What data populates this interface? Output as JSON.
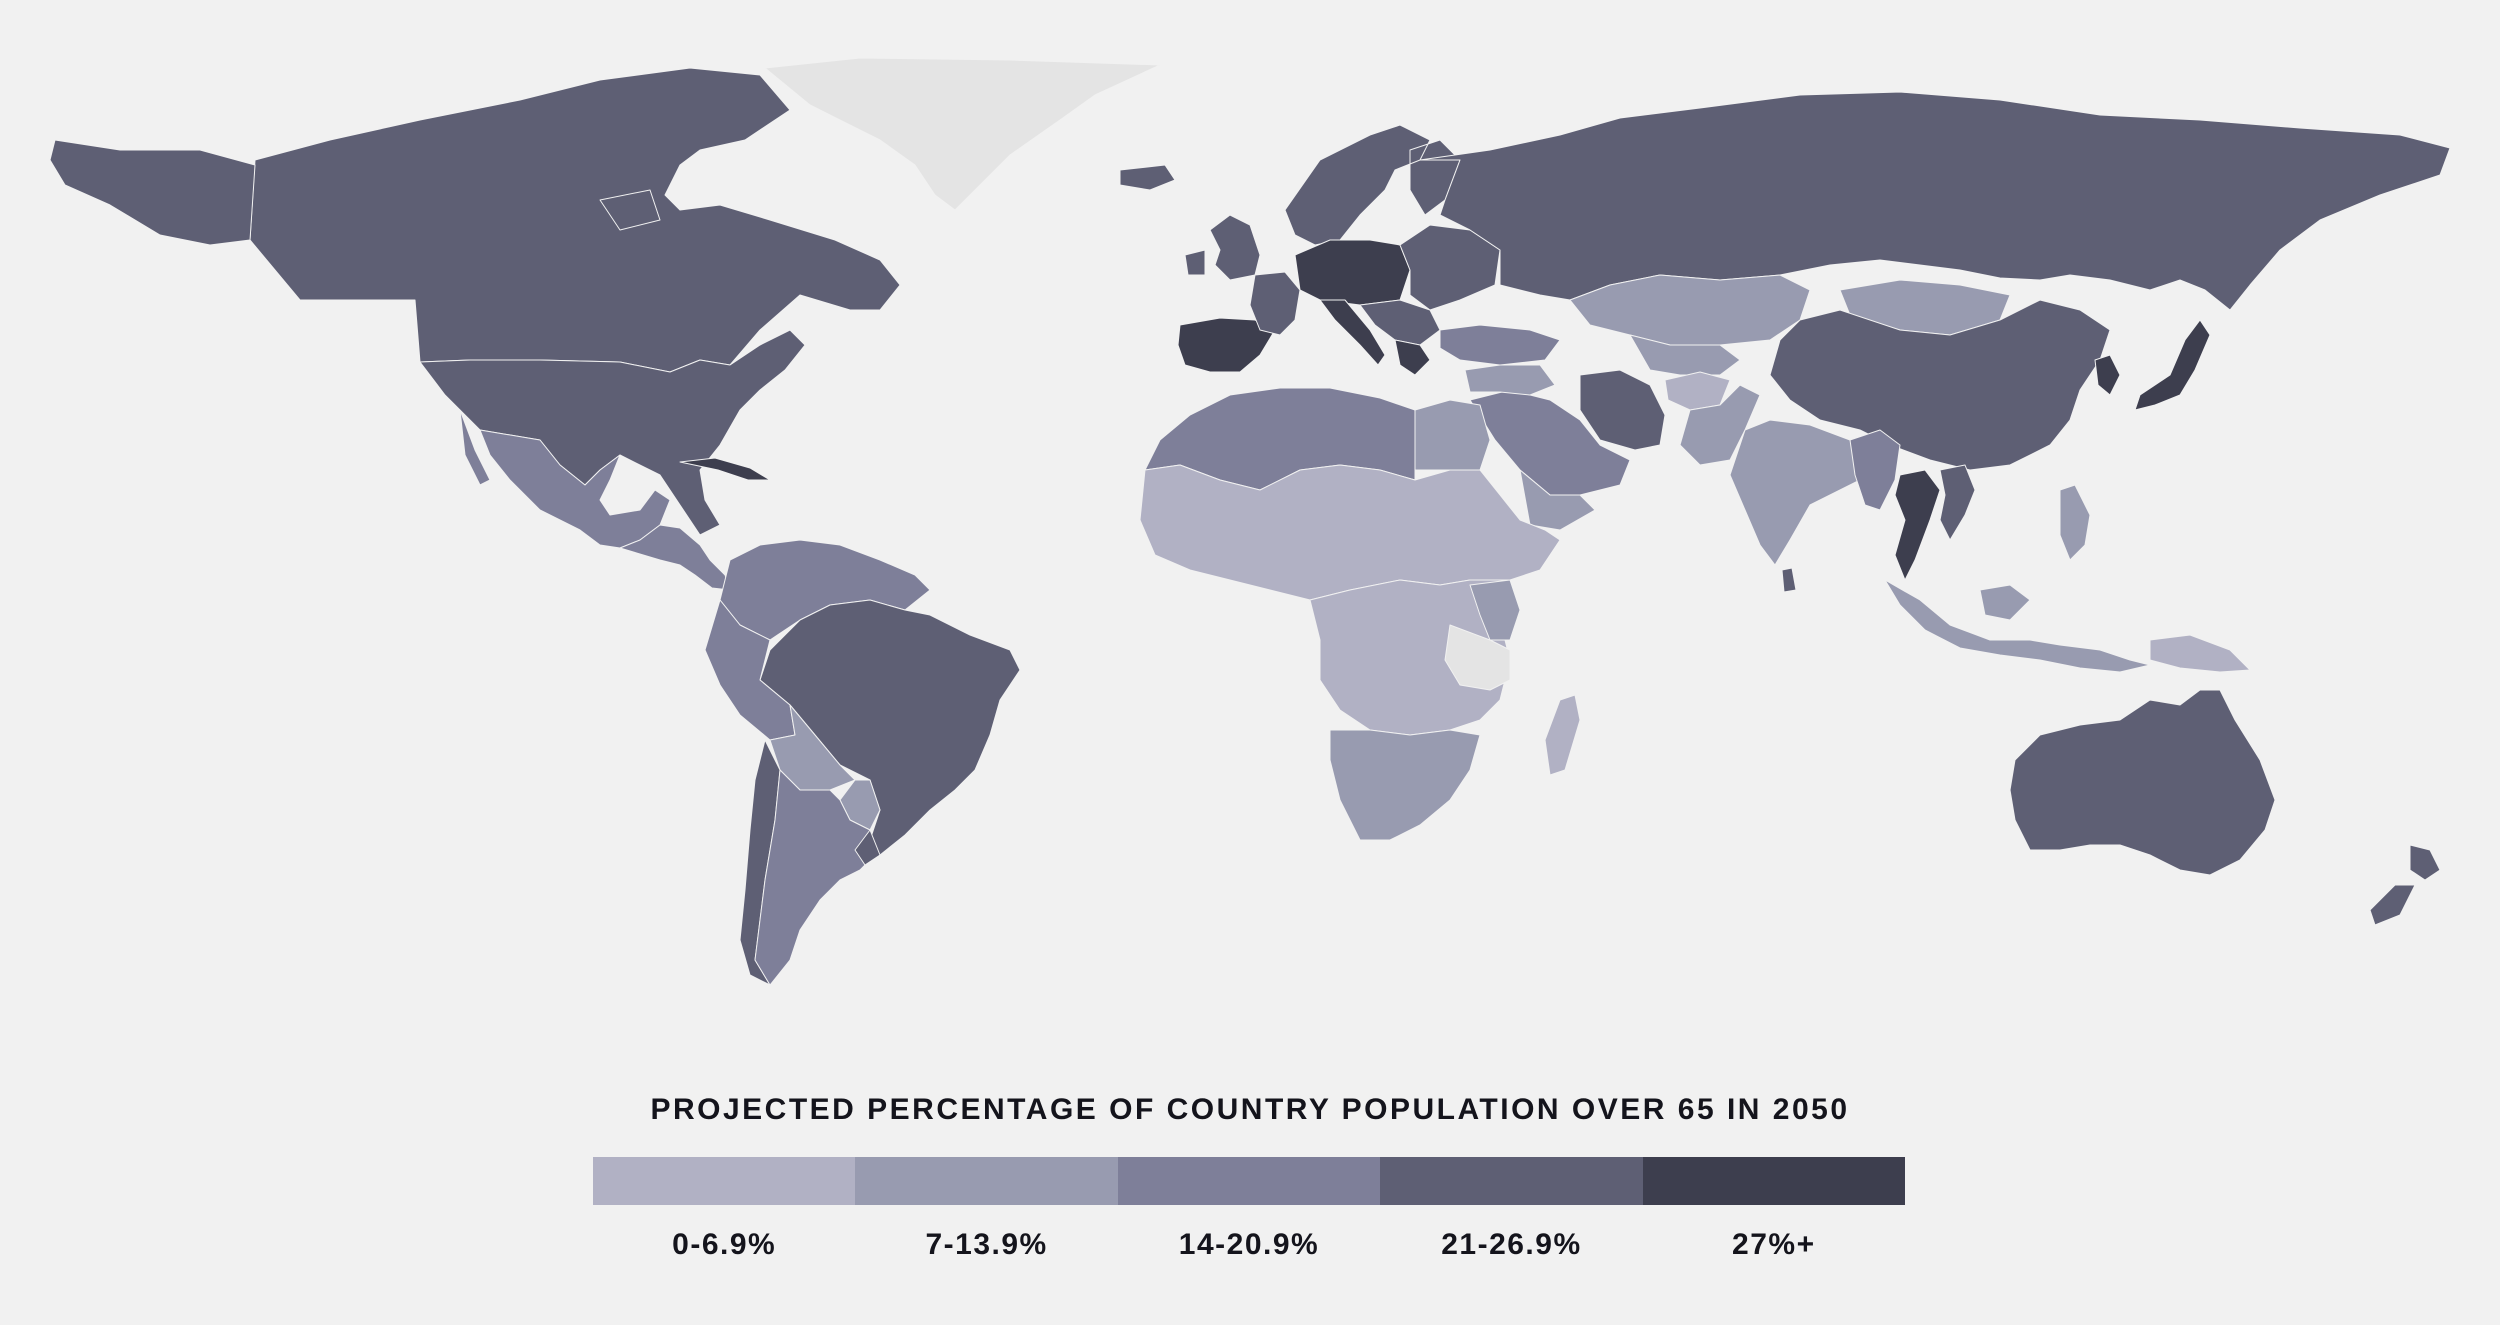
{
  "legend": {
    "title": "PROJECTED PERCENTAGE OF COUNTRY POPULATION OVER 65 IN 2050",
    "bins": [
      {
        "label": "0-6.9%",
        "color": "#b1b1c4"
      },
      {
        "label": "7-13.9%",
        "color": "#989bb0"
      },
      {
        "label": "14-20.9%",
        "color": "#7e7f99"
      },
      {
        "label": "21-26.9%",
        "color": "#5e5f74"
      },
      {
        "label": "27%+",
        "color": "#3d3e4e"
      }
    ]
  },
  "no_data_color": "#e4e4e4",
  "regions": [
    {
      "name": "Greenland",
      "bin": -1
    },
    {
      "name": "Canada",
      "bin": 3
    },
    {
      "name": "Alaska",
      "bin": 3
    },
    {
      "name": "United States",
      "bin": 3
    },
    {
      "name": "Mexico",
      "bin": 2
    },
    {
      "name": "Central America",
      "bin": 2
    },
    {
      "name": "Cuba",
      "bin": 4
    },
    {
      "name": "Northern South America",
      "bin": 2
    },
    {
      "name": "Brazil",
      "bin": 3
    },
    {
      "name": "Peru",
      "bin": 2
    },
    {
      "name": "Bolivia",
      "bin": 1
    },
    {
      "name": "Paraguay",
      "bin": 1
    },
    {
      "name": "Chile",
      "bin": 3
    },
    {
      "name": "Argentina",
      "bin": 2
    },
    {
      "name": "Uruguay",
      "bin": 3
    },
    {
      "name": "Iceland",
      "bin": 3
    },
    {
      "name": "United Kingdom",
      "bin": 3
    },
    {
      "name": "Scandinavia",
      "bin": 3
    },
    {
      "name": "Spain and Portugal",
      "bin": 4
    },
    {
      "name": "France",
      "bin": 3
    },
    {
      "name": "Central Europe",
      "bin": 4
    },
    {
      "name": "Italy",
      "bin": 4
    },
    {
      "name": "Balkans",
      "bin": 3
    },
    {
      "name": "Greece",
      "bin": 4
    },
    {
      "name": "Eastern Europe",
      "bin": 3
    },
    {
      "name": "Russia",
      "bin": 3
    },
    {
      "name": "Turkey",
      "bin": 2
    },
    {
      "name": "Kazakhstan",
      "bin": 1
    },
    {
      "name": "Mongolia",
      "bin": 1
    },
    {
      "name": "China",
      "bin": 3
    },
    {
      "name": "Korea",
      "bin": 4
    },
    {
      "name": "Japan",
      "bin": 4
    },
    {
      "name": "Iran",
      "bin": 3
    },
    {
      "name": "Central Asia",
      "bin": 1
    },
    {
      "name": "Afghanistan",
      "bin": 0
    },
    {
      "name": "Pakistan",
      "bin": 1
    },
    {
      "name": "India",
      "bin": 1
    },
    {
      "name": "Sri Lanka",
      "bin": 3
    },
    {
      "name": "Arabian Peninsula",
      "bin": 2
    },
    {
      "name": "Yemen",
      "bin": 1
    },
    {
      "name": "Levant",
      "bin": 1
    },
    {
      "name": "North Africa",
      "bin": 2
    },
    {
      "name": "Egypt",
      "bin": 1
    },
    {
      "name": "Sahel and West Africa",
      "bin": 0
    },
    {
      "name": "Central and East Africa",
      "bin": 0
    },
    {
      "name": "Kenya",
      "bin": 1
    },
    {
      "name": "Tanzania",
      "bin": -1
    },
    {
      "name": "Southern Africa",
      "bin": 1
    },
    {
      "name": "Madagascar",
      "bin": 0
    },
    {
      "name": "Myanmar",
      "bin": 2
    },
    {
      "name": "Thailand",
      "bin": 4
    },
    {
      "name": "Vietnam",
      "bin": 3
    },
    {
      "name": "Philippines",
      "bin": 1
    },
    {
      "name": "Indonesia",
      "bin": 1
    },
    {
      "name": "Papua New Guinea",
      "bin": 0
    },
    {
      "name": "Australia",
      "bin": 3
    },
    {
      "name": "New Zealand",
      "bin": 3
    }
  ]
}
